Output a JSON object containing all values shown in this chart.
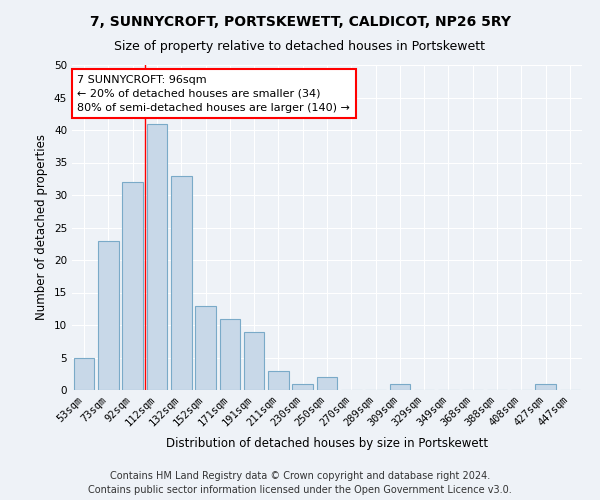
{
  "title": "7, SUNNYCROFT, PORTSKEWETT, CALDICOT, NP26 5RY",
  "subtitle": "Size of property relative to detached houses in Portskewett",
  "xlabel": "Distribution of detached houses by size in Portskewett",
  "ylabel": "Number of detached properties",
  "categories": [
    "53sqm",
    "73sqm",
    "92sqm",
    "112sqm",
    "132sqm",
    "152sqm",
    "171sqm",
    "191sqm",
    "211sqm",
    "230sqm",
    "250sqm",
    "270sqm",
    "289sqm",
    "309sqm",
    "329sqm",
    "349sqm",
    "368sqm",
    "388sqm",
    "408sqm",
    "427sqm",
    "447sqm"
  ],
  "values": [
    5,
    23,
    32,
    41,
    33,
    13,
    11,
    9,
    3,
    1,
    2,
    0,
    0,
    1,
    0,
    0,
    0,
    0,
    0,
    1,
    0
  ],
  "bar_color": "#c8d8e8",
  "bar_edge_color": "#7aaac8",
  "red_line_x": 2.5,
  "annotation_text": "7 SUNNYCROFT: 96sqm\n← 20% of detached houses are smaller (34)\n80% of semi-detached houses are larger (140) →",
  "annotation_box_color": "white",
  "annotation_box_edge": "red",
  "ylim": [
    0,
    50
  ],
  "yticks": [
    0,
    5,
    10,
    15,
    20,
    25,
    30,
    35,
    40,
    45,
    50
  ],
  "footer_line1": "Contains HM Land Registry data © Crown copyright and database right 2024.",
  "footer_line2": "Contains public sector information licensed under the Open Government Licence v3.0.",
  "bg_color": "#eef2f7",
  "plot_bg_color": "#eef2f7",
  "grid_color": "white",
  "title_fontsize": 10,
  "subtitle_fontsize": 9,
  "axis_label_fontsize": 8.5,
  "tick_fontsize": 7.5,
  "annotation_fontsize": 8,
  "footer_fontsize": 7
}
